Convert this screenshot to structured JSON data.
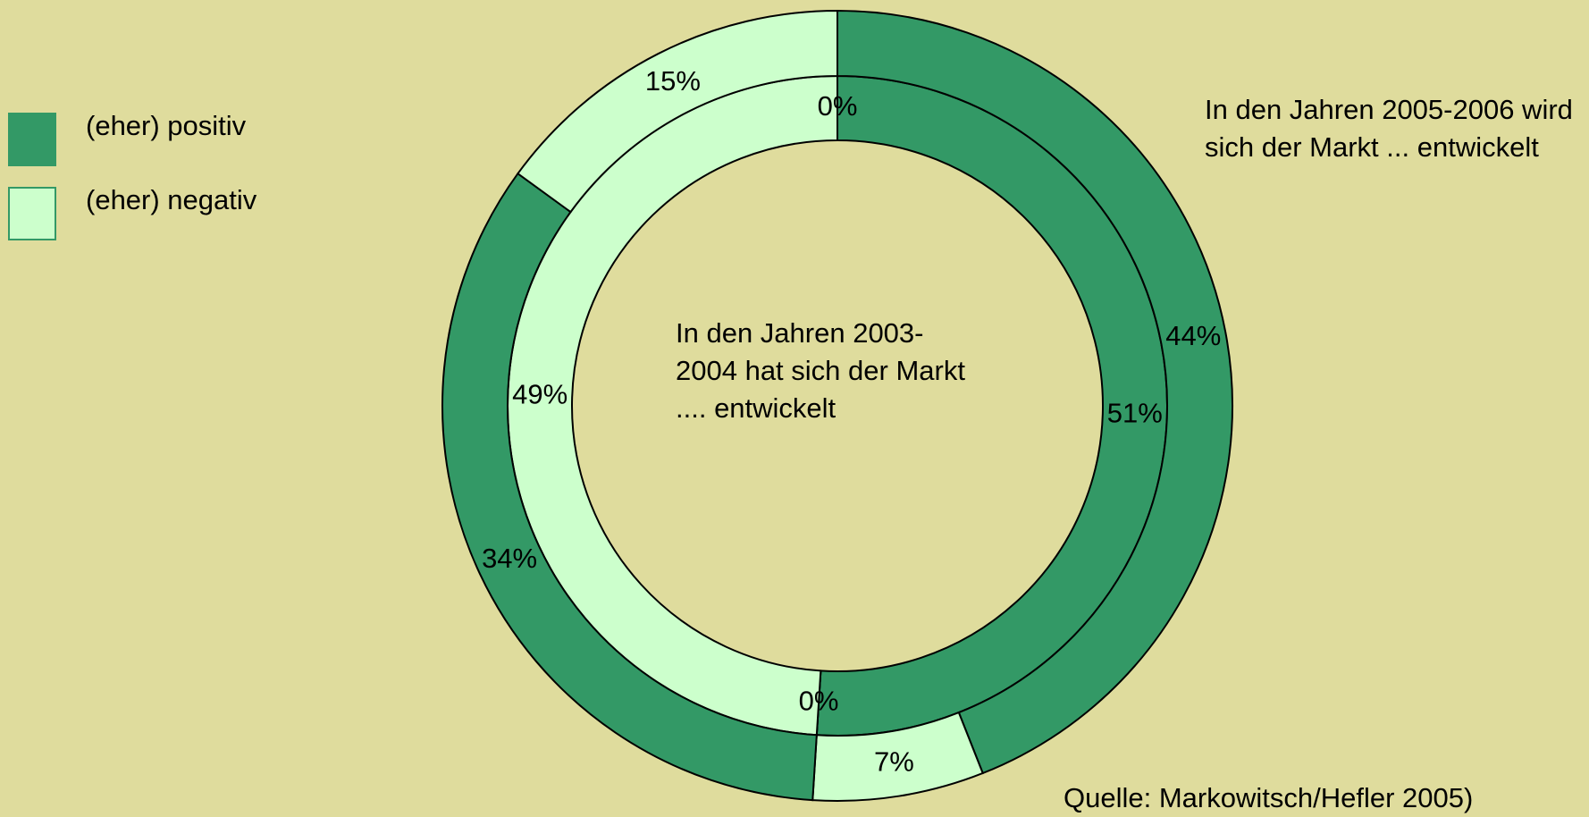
{
  "chart_data": {
    "type": "doughnut",
    "legend": [
      {
        "name": "(eher) positiv",
        "color": "#339966"
      },
      {
        "name": "(eher) negativ",
        "color": "#ccffcc"
      }
    ],
    "series": [
      {
        "name": "In den Jahren 2003-2004 hat sich der Markt .... entwickelt",
        "values": [
          51,
          0,
          49,
          0
        ],
        "value_labels": [
          "51%",
          "0%",
          "49%",
          "0%"
        ],
        "colors": [
          "#339966",
          "#ccffcc",
          "#ccffcc",
          "#339966"
        ]
      },
      {
        "name": "In den Jahren 2005-2006 wird sich der Markt ... entwickelt",
        "values": [
          44,
          7,
          34,
          15
        ],
        "value_labels": [
          "44%",
          "7%",
          "34%",
          "15%"
        ],
        "colors": [
          "#339966",
          "#ccffcc",
          "#339966",
          "#ccffcc"
        ]
      }
    ],
    "source": "Quelle: Markowitsch/Hefler 2005)"
  }
}
